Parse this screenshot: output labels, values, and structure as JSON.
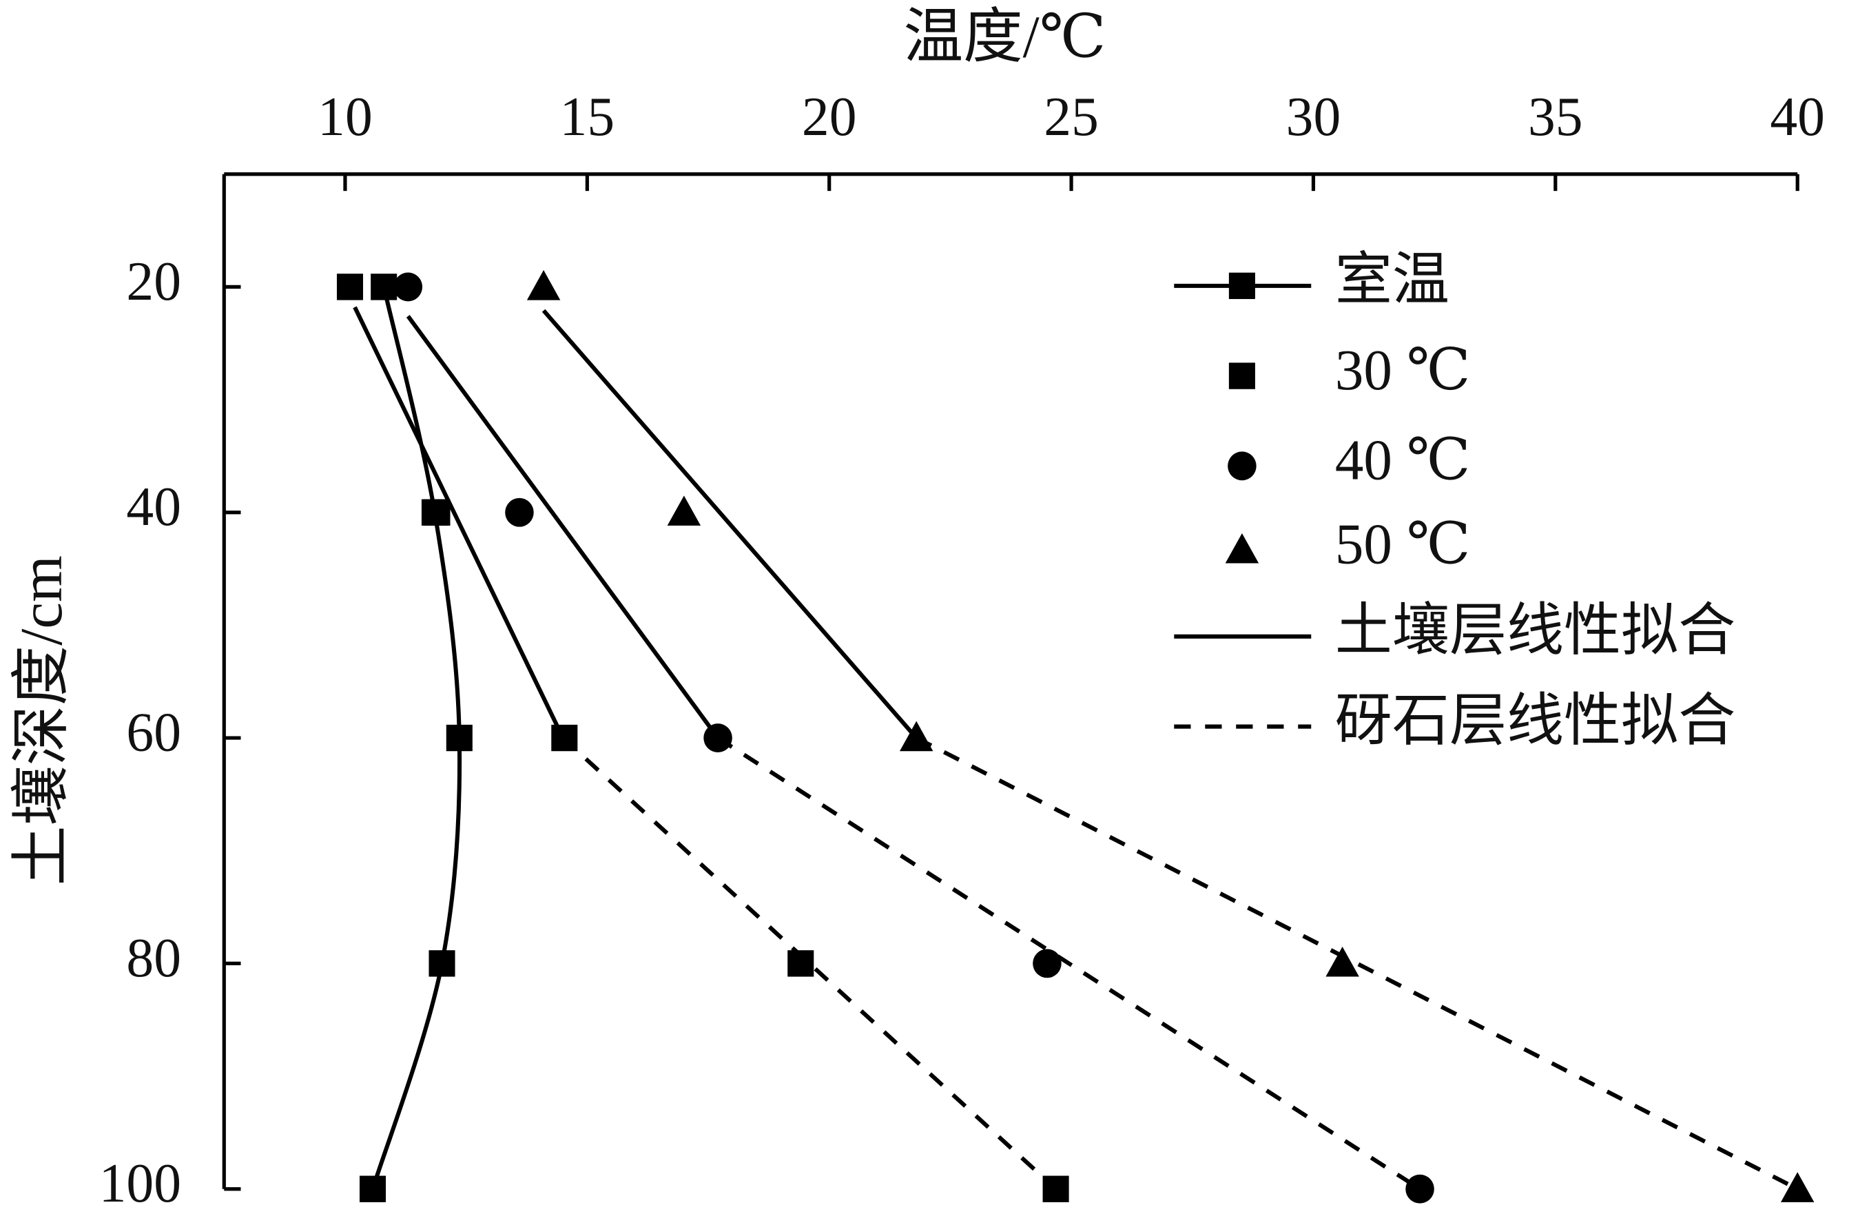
{
  "chart_data": {
    "type": "scatter",
    "x_label": "温度/℃",
    "y_label": "土壤深度/cm",
    "xlim": [
      7.5,
      40
    ],
    "xticks": [
      10,
      15,
      20,
      25,
      30,
      35,
      40
    ],
    "ylim": [
      10,
      100
    ],
    "yticks": [
      20,
      40,
      60,
      80,
      100
    ],
    "y_inverted": true,
    "x_axis_position": "top",
    "legend": "upper right",
    "series": [
      {
        "name": "室温",
        "color": "#000000",
        "marker": "square",
        "line": "smooth",
        "x": [
          10.8,
          11.85,
          12.36,
          12.0,
          10.57
        ],
        "y": [
          20,
          40,
          60,
          80,
          100
        ]
      },
      {
        "name": "30 ℃",
        "color": "#000000",
        "marker": "square",
        "line": "none",
        "x": [
          10.1,
          11.9,
          14.53,
          19.41,
          24.68
        ],
        "y": [
          20,
          40,
          60,
          80,
          100
        ]
      },
      {
        "name": "40 ℃",
        "color": "#000000",
        "marker": "circle",
        "line": "none",
        "x": [
          11.3,
          13.6,
          17.7,
          24.5,
          32.2
        ],
        "y": [
          20,
          40,
          60,
          80,
          100
        ]
      },
      {
        "name": "50 ℃",
        "color": "#000000",
        "marker": "triangle",
        "line": "none",
        "x": [
          14.1,
          17.0,
          21.8,
          30.6,
          40.0
        ],
        "y": [
          20,
          40,
          60,
          80,
          100
        ]
      },
      {
        "name": "土壤层线性拟合",
        "color": "#000000",
        "marker": "none",
        "line": "solid",
        "x": [
          10.2,
          14.5,
          null,
          11.3,
          17.7,
          null,
          14.1,
          21.8
        ],
        "y": [
          21.8,
          60,
          null,
          22.6,
          60,
          null,
          22.1,
          60
        ]
      },
      {
        "name": "砑石层线性拟合",
        "color": "#000000",
        "marker": "none",
        "line": "dashed",
        "x": [
          14.5,
          24.68,
          null,
          17.7,
          32.2,
          null,
          21.8,
          40.0
        ],
        "y": [
          60,
          100,
          null,
          60,
          100,
          null,
          60,
          100
        ]
      }
    ]
  }
}
